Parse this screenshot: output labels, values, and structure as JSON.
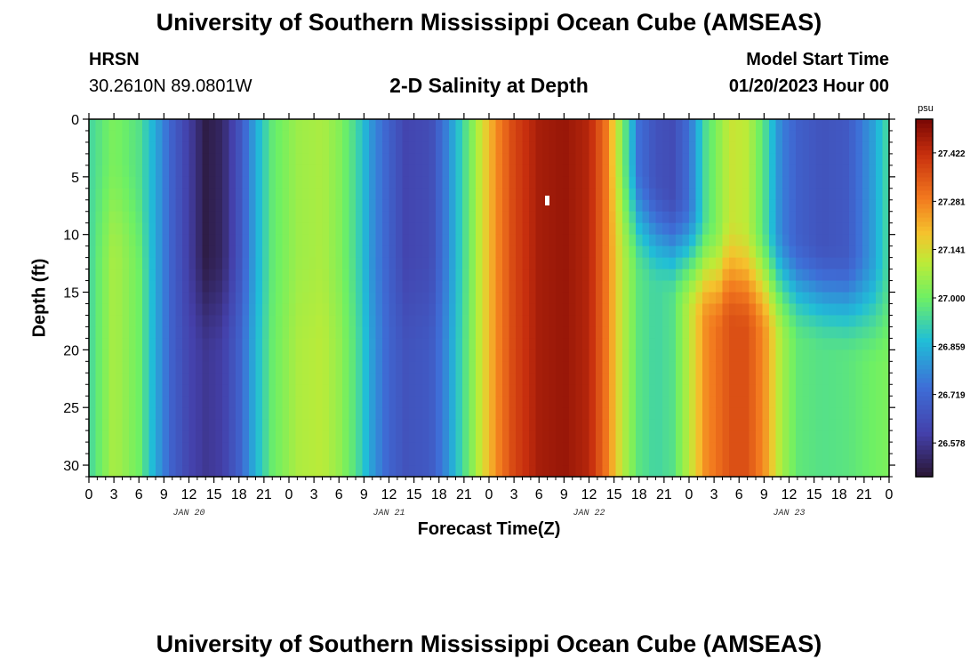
{
  "header": {
    "title": "University of Southern Mississippi Ocean Cube (AMSEAS)",
    "station": "HRSN",
    "coordinates": "30.2610N  89.0801W",
    "subtitle": "2-D Salinity at Depth",
    "model_start_label": "Model Start Time",
    "model_start_value": "01/20/2023 Hour 00"
  },
  "footer": {
    "title": "University of Southern Mississippi Ocean Cube (AMSEAS)"
  },
  "chart_data": {
    "type": "heatmap",
    "title": "2-D Salinity at Depth",
    "xlabel": "Forecast Time(Z)",
    "ylabel": "Depth (ft)",
    "x_range_hours": [
      0,
      96
    ],
    "ylim": [
      0,
      31
    ],
    "y_ticks": [
      0,
      5,
      10,
      15,
      20,
      25,
      30
    ],
    "y_tick_labels": [
      "0",
      "5",
      "10",
      "15",
      "20",
      "25",
      "30"
    ],
    "x_ticks_hours": [
      0,
      3,
      6,
      9,
      12,
      15,
      18,
      21,
      24,
      27,
      30,
      33,
      36,
      39,
      42,
      45,
      48,
      51,
      54,
      57,
      60,
      63,
      66,
      69,
      72,
      75,
      78,
      81,
      84,
      87,
      90,
      93,
      96
    ],
    "x_tick_labels": [
      "0",
      "3",
      "6",
      "9",
      "12",
      "15",
      "18",
      "21",
      "0",
      "3",
      "6",
      "9",
      "12",
      "15",
      "18",
      "21",
      "0",
      "3",
      "6",
      "9",
      "12",
      "15",
      "18",
      "21",
      "0",
      "3",
      "6",
      "9",
      "12",
      "15",
      "18",
      "21",
      "0"
    ],
    "day_labels": [
      {
        "label": "JAN 20",
        "hour": 12
      },
      {
        "label": "JAN 21",
        "hour": 36
      },
      {
        "label": "JAN 22",
        "hour": 60
      },
      {
        "label": "JAN 23",
        "hour": 84
      }
    ],
    "colorbar": {
      "unit": "psu",
      "min": 26.48,
      "max": 27.52,
      "tick_labels": [
        "27.422",
        "27.281",
        "27.141",
        "27.000",
        "26.859",
        "26.719",
        "26.578"
      ],
      "tick_values": [
        27.422,
        27.281,
        27.141,
        27.0,
        26.859,
        26.719,
        26.578
      ]
    },
    "surface_salinity_by_hour": [
      {
        "hour": 0,
        "value": 26.93
      },
      {
        "hour": 3,
        "value": 27.02
      },
      {
        "hour": 6,
        "value": 26.96
      },
      {
        "hour": 8,
        "value": 26.84
      },
      {
        "hour": 10,
        "value": 26.7
      },
      {
        "hour": 12,
        "value": 26.6
      },
      {
        "hour": 14,
        "value": 26.5
      },
      {
        "hour": 16,
        "value": 26.53
      },
      {
        "hour": 18,
        "value": 26.66
      },
      {
        "hour": 20,
        "value": 26.84
      },
      {
        "hour": 22,
        "value": 26.98
      },
      {
        "hour": 25,
        "value": 27.06
      },
      {
        "hour": 28,
        "value": 27.08
      },
      {
        "hour": 30,
        "value": 27.03
      },
      {
        "hour": 32,
        "value": 26.94
      },
      {
        "hour": 34,
        "value": 26.8
      },
      {
        "hour": 36,
        "value": 26.7
      },
      {
        "hour": 38,
        "value": 26.62
      },
      {
        "hour": 41,
        "value": 26.64
      },
      {
        "hour": 43,
        "value": 26.78
      },
      {
        "hour": 45,
        "value": 26.94
      },
      {
        "hour": 47,
        "value": 27.12
      },
      {
        "hour": 49,
        "value": 27.27
      },
      {
        "hour": 51,
        "value": 27.38
      },
      {
        "hour": 54,
        "value": 27.46
      },
      {
        "hour": 57,
        "value": 27.48
      },
      {
        "hour": 60,
        "value": 27.44
      },
      {
        "hour": 62,
        "value": 27.3
      },
      {
        "hour": 64,
        "value": 27.02
      },
      {
        "hour": 66,
        "value": 26.74
      },
      {
        "hour": 68,
        "value": 26.66
      },
      {
        "hour": 70,
        "value": 26.64
      },
      {
        "hour": 72,
        "value": 26.74
      },
      {
        "hour": 74,
        "value": 26.95
      },
      {
        "hour": 77,
        "value": 27.12
      },
      {
        "hour": 79,
        "value": 27.1
      },
      {
        "hour": 81,
        "value": 26.96
      },
      {
        "hour": 83,
        "value": 26.78
      },
      {
        "hour": 85,
        "value": 26.7
      },
      {
        "hour": 88,
        "value": 26.66
      },
      {
        "hour": 91,
        "value": 26.68
      },
      {
        "hour": 94,
        "value": 26.82
      },
      {
        "hour": 96,
        "value": 26.95
      }
    ],
    "deep_salinity_by_hour": [
      {
        "hour": 0,
        "value": 26.93
      },
      {
        "hour": 3,
        "value": 27.08
      },
      {
        "hour": 6,
        "value": 27.0
      },
      {
        "hour": 8,
        "value": 26.84
      },
      {
        "hour": 10,
        "value": 26.7
      },
      {
        "hour": 12,
        "value": 26.62
      },
      {
        "hour": 14,
        "value": 26.58
      },
      {
        "hour": 16,
        "value": 26.6
      },
      {
        "hour": 18,
        "value": 26.7
      },
      {
        "hour": 20,
        "value": 26.86
      },
      {
        "hour": 22,
        "value": 26.99
      },
      {
        "hour": 25,
        "value": 27.08
      },
      {
        "hour": 28,
        "value": 27.1
      },
      {
        "hour": 30,
        "value": 27.05
      },
      {
        "hour": 32,
        "value": 26.96
      },
      {
        "hour": 34,
        "value": 26.82
      },
      {
        "hour": 36,
        "value": 26.71
      },
      {
        "hour": 38,
        "value": 26.66
      },
      {
        "hour": 41,
        "value": 26.68
      },
      {
        "hour": 43,
        "value": 26.8
      },
      {
        "hour": 45,
        "value": 26.95
      },
      {
        "hour": 47,
        "value": 27.12
      },
      {
        "hour": 49,
        "value": 27.27
      },
      {
        "hour": 51,
        "value": 27.38
      },
      {
        "hour": 54,
        "value": 27.46
      },
      {
        "hour": 57,
        "value": 27.48
      },
      {
        "hour": 60,
        "value": 27.44
      },
      {
        "hour": 62,
        "value": 27.3
      },
      {
        "hour": 64,
        "value": 27.1
      },
      {
        "hour": 66,
        "value": 26.97
      },
      {
        "hour": 68,
        "value": 26.93
      },
      {
        "hour": 70,
        "value": 26.96
      },
      {
        "hour": 72,
        "value": 27.1
      },
      {
        "hour": 74,
        "value": 27.26
      },
      {
        "hour": 77,
        "value": 27.36
      },
      {
        "hour": 79,
        "value": 27.36
      },
      {
        "hour": 81,
        "value": 27.26
      },
      {
        "hour": 83,
        "value": 27.08
      },
      {
        "hour": 85,
        "value": 26.98
      },
      {
        "hour": 88,
        "value": 26.96
      },
      {
        "hour": 91,
        "value": 26.97
      },
      {
        "hour": 94,
        "value": 27.0
      },
      {
        "hour": 96,
        "value": 27.02
      }
    ]
  }
}
